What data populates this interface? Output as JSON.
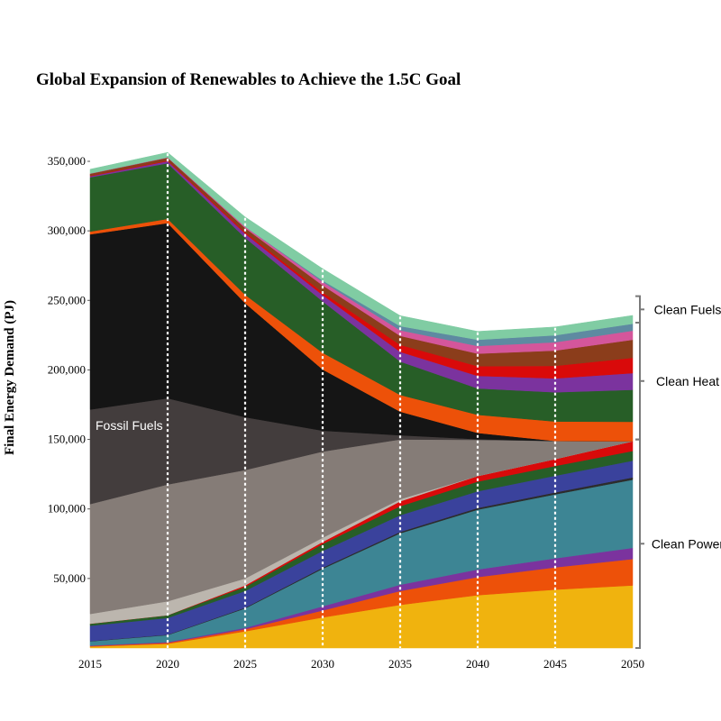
{
  "chart_data": {
    "type": "area",
    "stacked": true,
    "title": "Global Expansion of Renewables to Achieve the 1.5C Goal",
    "xlabel": "",
    "ylabel": "Final Energy Demand (PJ)",
    "x": [
      2015,
      2020,
      2025,
      2030,
      2035,
      2040,
      2045,
      2050
    ],
    "xlim": [
      2015,
      2050
    ],
    "ylim": [
      0,
      350000
    ],
    "x_ticks": [
      "2015",
      "2020",
      "2025",
      "2030",
      "2035",
      "2040",
      "2045",
      "2050"
    ],
    "y_ticks": [
      "50,000",
      "100,000",
      "150,000",
      "200,000",
      "250,000",
      "300,000",
      "350,000"
    ],
    "y_tick_values": [
      50000,
      100000,
      150000,
      200000,
      250000,
      300000,
      350000
    ],
    "grid": false,
    "vertical_dashed_lines_at": [
      2020,
      2025,
      2030,
      2035,
      2040,
      2045
    ],
    "series": [
      {
        "color": "#f0b30e",
        "values": [
          1000,
          3000,
          12000,
          22000,
          31000,
          38000,
          42000,
          45000
        ]
      },
      {
        "color": "#ed5109",
        "values": [
          500,
          800,
          1500,
          5000,
          10000,
          13000,
          16000,
          19000
        ]
      },
      {
        "color": "#7b339e",
        "values": [
          300,
          500,
          1000,
          3000,
          4500,
          5500,
          6500,
          8000
        ]
      },
      {
        "color": "#3d8594",
        "values": [
          3000,
          5000,
          14000,
          27000,
          37000,
          43000,
          46000,
          49000
        ]
      },
      {
        "color": "#2c2c2c",
        "values": [
          200,
          300,
          500,
          800,
          1000,
          1200,
          1400,
          1700
        ]
      },
      {
        "color": "#3a429c",
        "values": [
          11000,
          12000,
          12000,
          12000,
          12000,
          12000,
          12000,
          12000
        ]
      },
      {
        "color": "#275e27",
        "values": [
          1500,
          2000,
          3000,
          5000,
          6500,
          7000,
          7000,
          7000
        ]
      },
      {
        "color": "#d90a0a",
        "values": [
          0,
          0,
          1000,
          1500,
          3500,
          4000,
          5000,
          7000
        ]
      },
      {
        "color": "#bcb6ae",
        "values": [
          7000,
          10000,
          5000,
          3000,
          1500,
          0,
          0,
          0
        ]
      },
      {
        "color": "#857c77",
        "values": [
          79000,
          84000,
          78000,
          62000,
          43000,
          26000,
          13000,
          0
        ]
      },
      {
        "color": "#433d3d",
        "values": [
          68000,
          62000,
          38000,
          15000,
          3000,
          500,
          0,
          0
        ]
      },
      {
        "color": "#151515",
        "values": [
          126000,
          126000,
          82000,
          44000,
          17000,
          4500,
          0,
          0
        ]
      },
      {
        "color": "#ed5109",
        "values": [
          2000,
          3000,
          6000,
          12000,
          12000,
          13000,
          14000,
          14000
        ]
      },
      {
        "color": "#275e27",
        "values": [
          39000,
          40000,
          41000,
          37000,
          24000,
          19000,
          21000,
          23000
        ]
      },
      {
        "color": "#7b339e",
        "values": [
          800,
          1500,
          3000,
          4500,
          7000,
          9000,
          10000,
          12000
        ]
      },
      {
        "color": "#d90a0a",
        "values": [
          300,
          500,
          1000,
          2000,
          5000,
          7000,
          9000,
          11000
        ]
      },
      {
        "color": "#8b3d1b",
        "values": [
          1500,
          2000,
          3000,
          5000,
          6500,
          9000,
          11000,
          13000
        ]
      },
      {
        "color": "#d4569b",
        "values": [
          200,
          300,
          1000,
          2500,
          4000,
          5500,
          6000,
          6500
        ]
      },
      {
        "color": "#5e8aa1",
        "values": [
          0,
          0,
          0,
          1000,
          3000,
          4500,
          5000,
          5000
        ]
      },
      {
        "color": "#80cca3",
        "values": [
          3000,
          3500,
          7000,
          8500,
          7500,
          6000,
          6000,
          6000
        ]
      }
    ],
    "annotations": [
      {
        "text": "Fossil Fuels",
        "color": "#ffffff"
      }
    ],
    "groups": [
      {
        "label": "Clean Power",
        "y_from": 0,
        "y_to": 150000
      },
      {
        "label": "Clean Heat",
        "y_from": 150000,
        "y_to": 234000
      },
      {
        "label": "Clean Fuels",
        "y_from": 234000,
        "y_to": 253000
      }
    ]
  }
}
